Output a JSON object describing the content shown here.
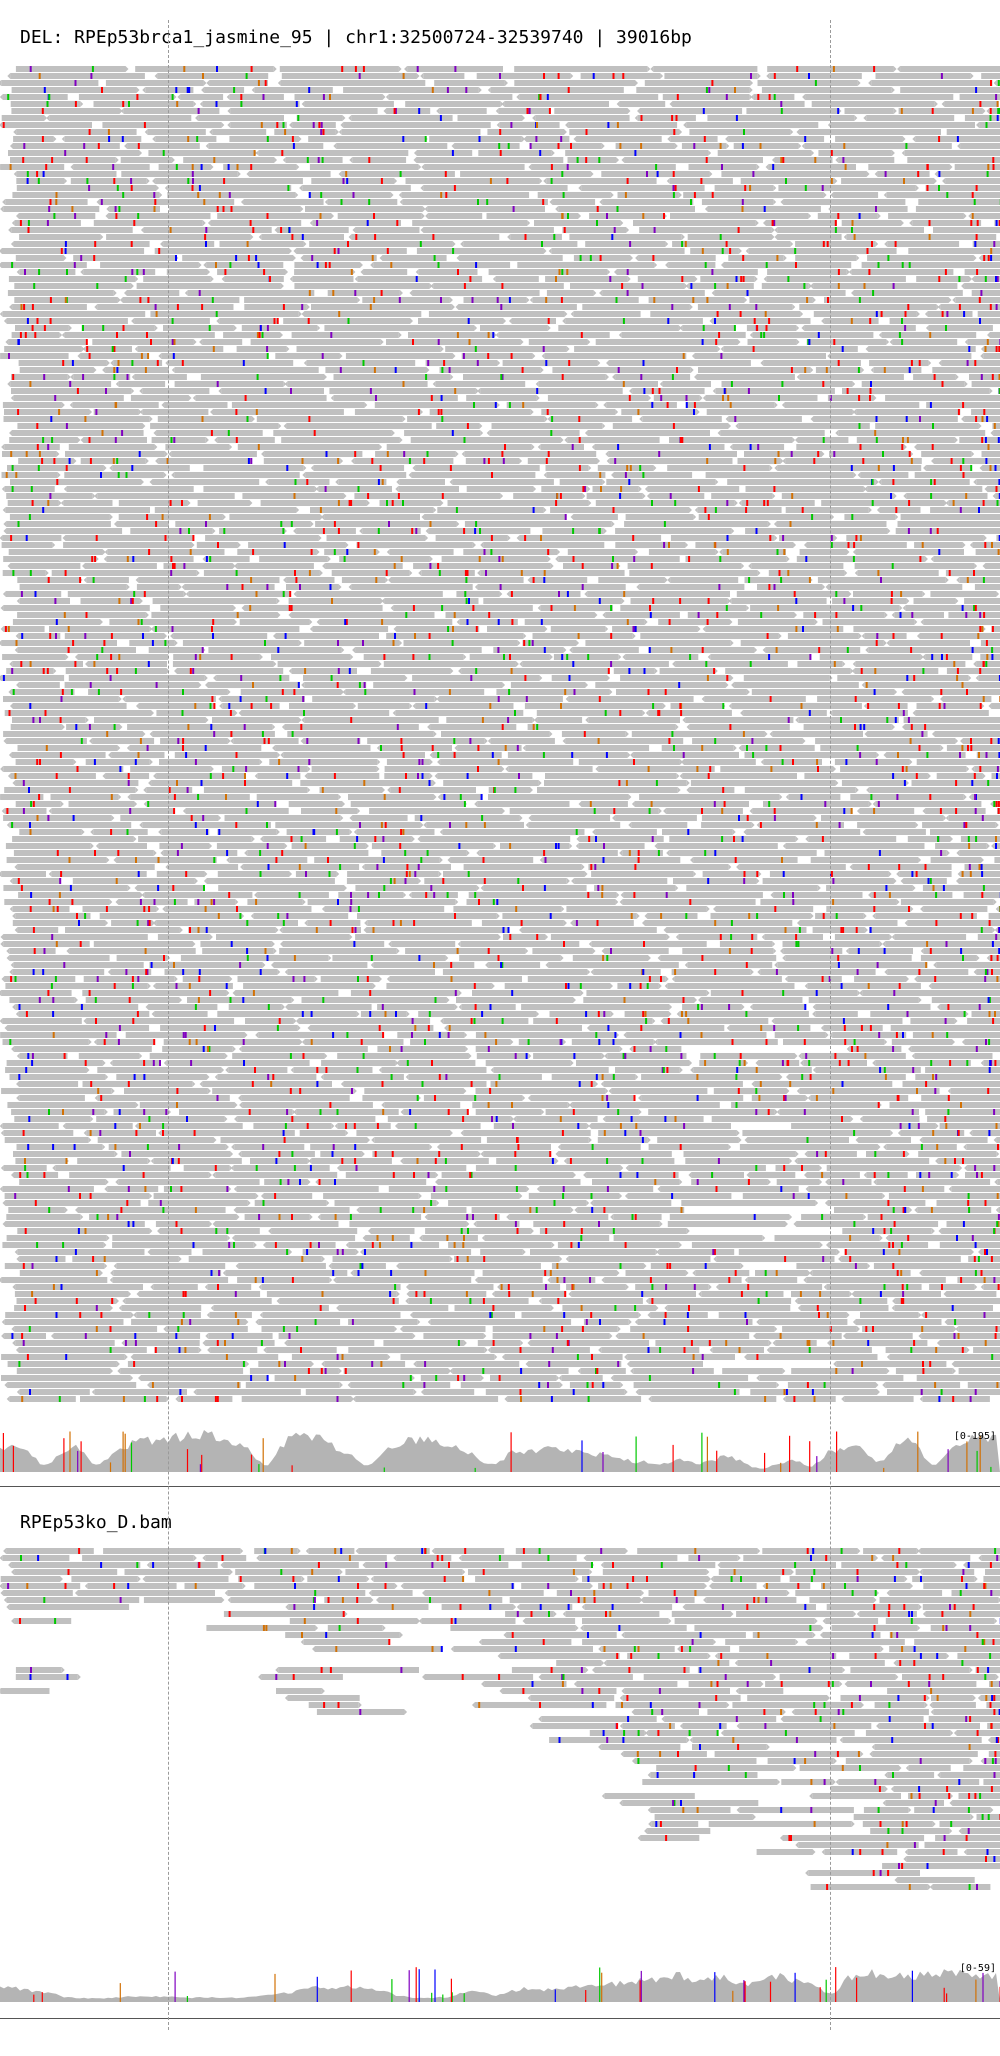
{
  "tracks": [
    {
      "title": "DEL: RPEp53brca1_jasmine_95 | chr1:32500724-32539740 | 39016bp",
      "coverage_range": "[0-195]",
      "max_depth": 140,
      "gaps": [
        0.045,
        0.096,
        0.265,
        0.367,
        0.492,
        0.765,
        0.81,
        0.88,
        0.935
      ]
    },
    {
      "title": "RPEp53ko_D.bam",
      "coverage_range": "[0-59]",
      "max_depth": 44,
      "gaps": [
        0.1,
        0.215,
        0.44,
        0.83
      ]
    }
  ],
  "colors": {
    "read": "#c0c0c0",
    "mismatch_a": "#00c800",
    "mismatch_c": "#0000ff",
    "mismatch_g": "#d17105",
    "mismatch_t": "#ff0000",
    "insertion": "#8000c0",
    "coverage": "#b4b4b4",
    "breakpoint_line": "#9a9a9a"
  }
}
